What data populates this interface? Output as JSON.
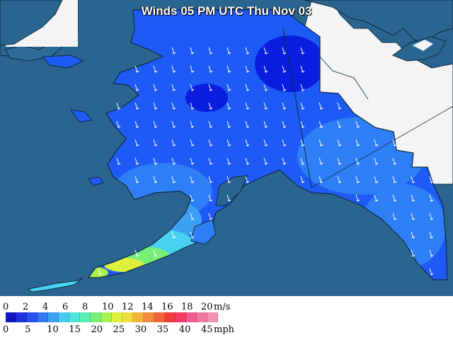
{
  "title": "Winds 05 PM UTC Thu Nov 03",
  "legend": {
    "ms_labels": [
      "0",
      "2",
      "4",
      "6",
      "8",
      "10",
      "12",
      "14",
      "16",
      "18",
      "20"
    ],
    "ms_unit": "m/s",
    "mph_labels": [
      "0",
      "5",
      "10",
      "15",
      "20",
      "25",
      "30",
      "35",
      "40",
      "45"
    ],
    "mph_unit": "mph",
    "colors": [
      "#1414c8",
      "#1e32dc",
      "#2850f0",
      "#3278f5",
      "#3ca0f5",
      "#46c8f0",
      "#50e6dc",
      "#5af0b4",
      "#78f078",
      "#aaf050",
      "#dcf03c",
      "#f0dc3c",
      "#f0b43c",
      "#f08c3c",
      "#f0643c",
      "#f03c3c",
      "#f03c64",
      "#f05a8c",
      "#f078a0",
      "#f096b4"
    ]
  },
  "map_colors": {
    "ocean": "#2a6590",
    "land_other": "#2a6590",
    "canada": "#f4f4f4",
    "wind_deep": "#0a1ee0",
    "wind_mid": "#1e5af5",
    "wind_light": "#3ca0f5",
    "wind_cyan": "#46d2f0",
    "wind_green": "#78f078",
    "wind_yellow": "#dcf03c"
  }
}
